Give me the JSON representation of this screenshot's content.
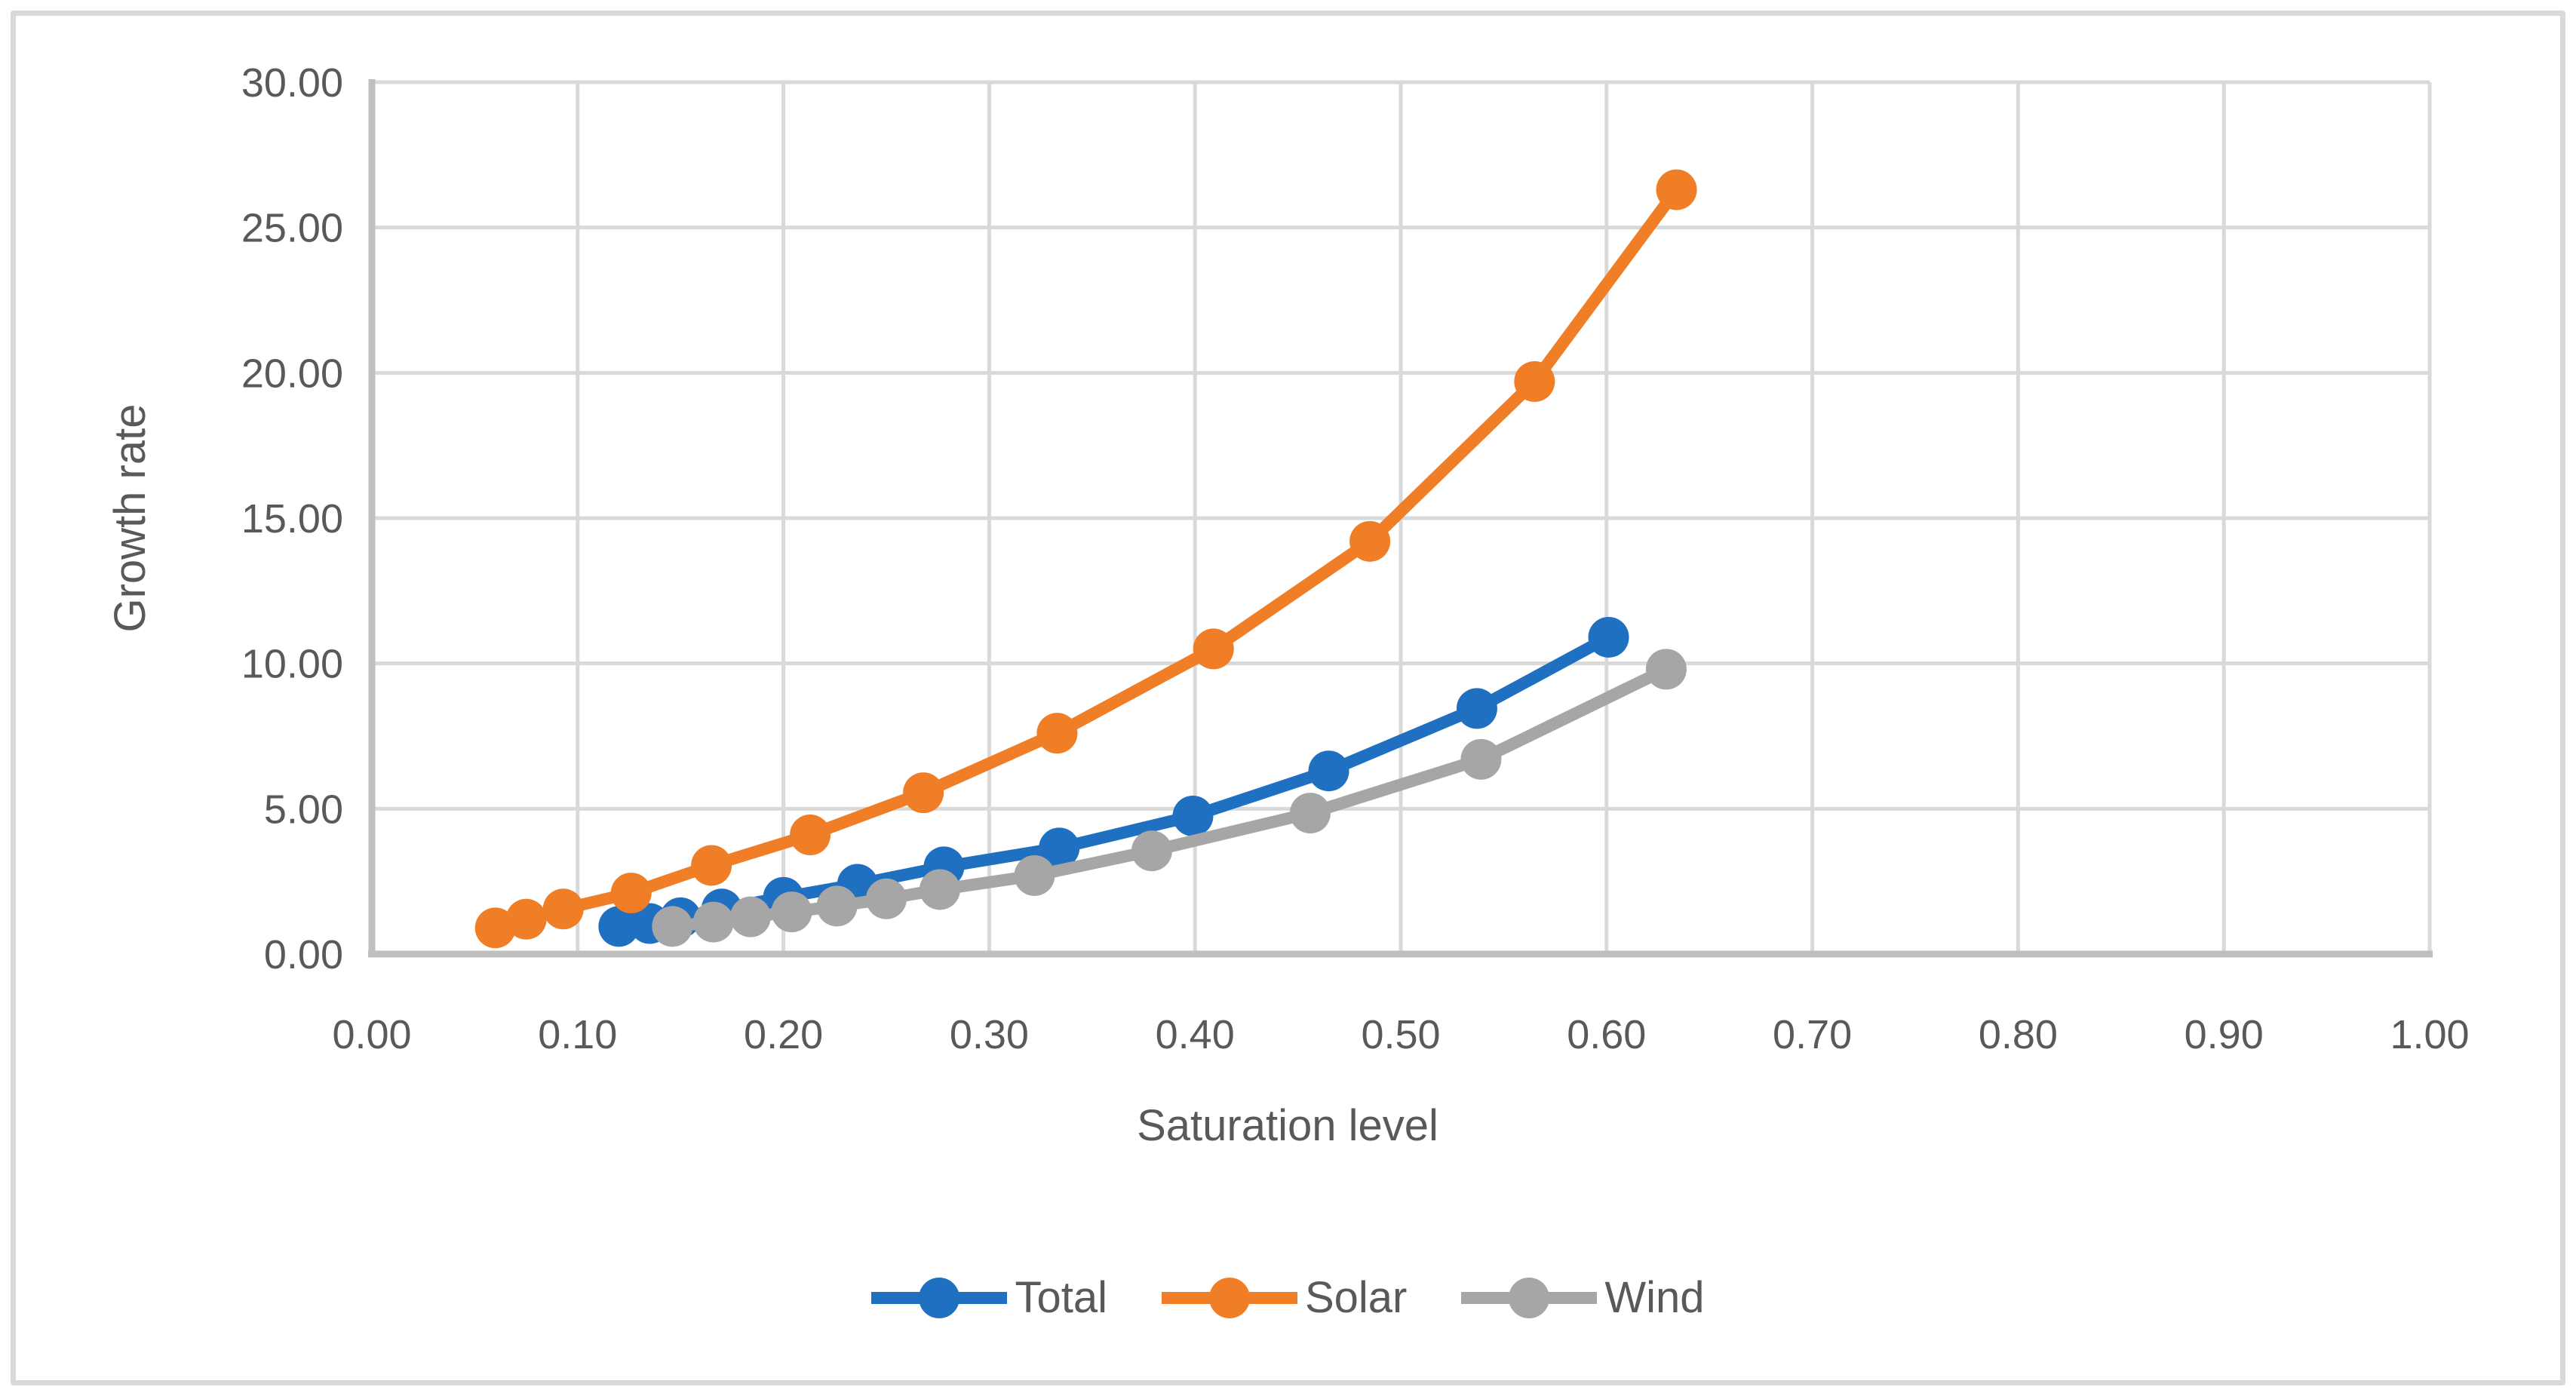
{
  "figure": {
    "background": "#FFFFFF",
    "border_color": "#D9D9D9"
  },
  "chart_data": {
    "type": "line",
    "title": "",
    "xlabel": "Saturation level",
    "ylabel": "Growth rate",
    "xlim": [
      0,
      1
    ],
    "ylim": [
      0,
      30
    ],
    "x_ticks": [
      "0.00",
      "0.10",
      "0.20",
      "0.30",
      "0.40",
      "0.50",
      "0.60",
      "0.70",
      "0.80",
      "0.90",
      "1.00"
    ],
    "y_ticks": [
      "0.00",
      "5.00",
      "10.00",
      "15.00",
      "20.00",
      "25.00",
      "30.00"
    ],
    "grid": true,
    "legend_position": "bottom-center",
    "axis_text_color": "#595959",
    "gridline_color": "#D9D9D9",
    "axis_line_color": "#BFBFBF",
    "series": [
      {
        "name": "Total",
        "color": "#1F70C1",
        "x": [
          0.12,
          0.135,
          0.15,
          0.17,
          0.2,
          0.236,
          0.278,
          0.334,
          0.399,
          0.465,
          0.537,
          0.601
        ],
        "y": [
          0.95,
          1.05,
          1.25,
          1.55,
          1.95,
          2.4,
          3.0,
          3.65,
          4.75,
          6.3,
          8.45,
          10.9
        ]
      },
      {
        "name": "Solar",
        "color": "#F07E27",
        "x": [
          0.06,
          0.075,
          0.093,
          0.126,
          0.165,
          0.213,
          0.268,
          0.333,
          0.409,
          0.485,
          0.565,
          0.634
        ],
        "y": [
          0.9,
          1.2,
          1.55,
          2.1,
          3.05,
          4.1,
          5.55,
          7.6,
          10.5,
          14.2,
          19.7,
          26.3
        ]
      },
      {
        "name": "Wind",
        "color": "#A6A6A6",
        "x": [
          0.146,
          0.166,
          0.184,
          0.204,
          0.226,
          0.25,
          0.276,
          0.322,
          0.379,
          0.456,
          0.539,
          0.629
        ],
        "y": [
          0.95,
          1.1,
          1.28,
          1.45,
          1.65,
          1.9,
          2.22,
          2.7,
          3.55,
          4.85,
          6.7,
          9.8
        ]
      }
    ]
  }
}
